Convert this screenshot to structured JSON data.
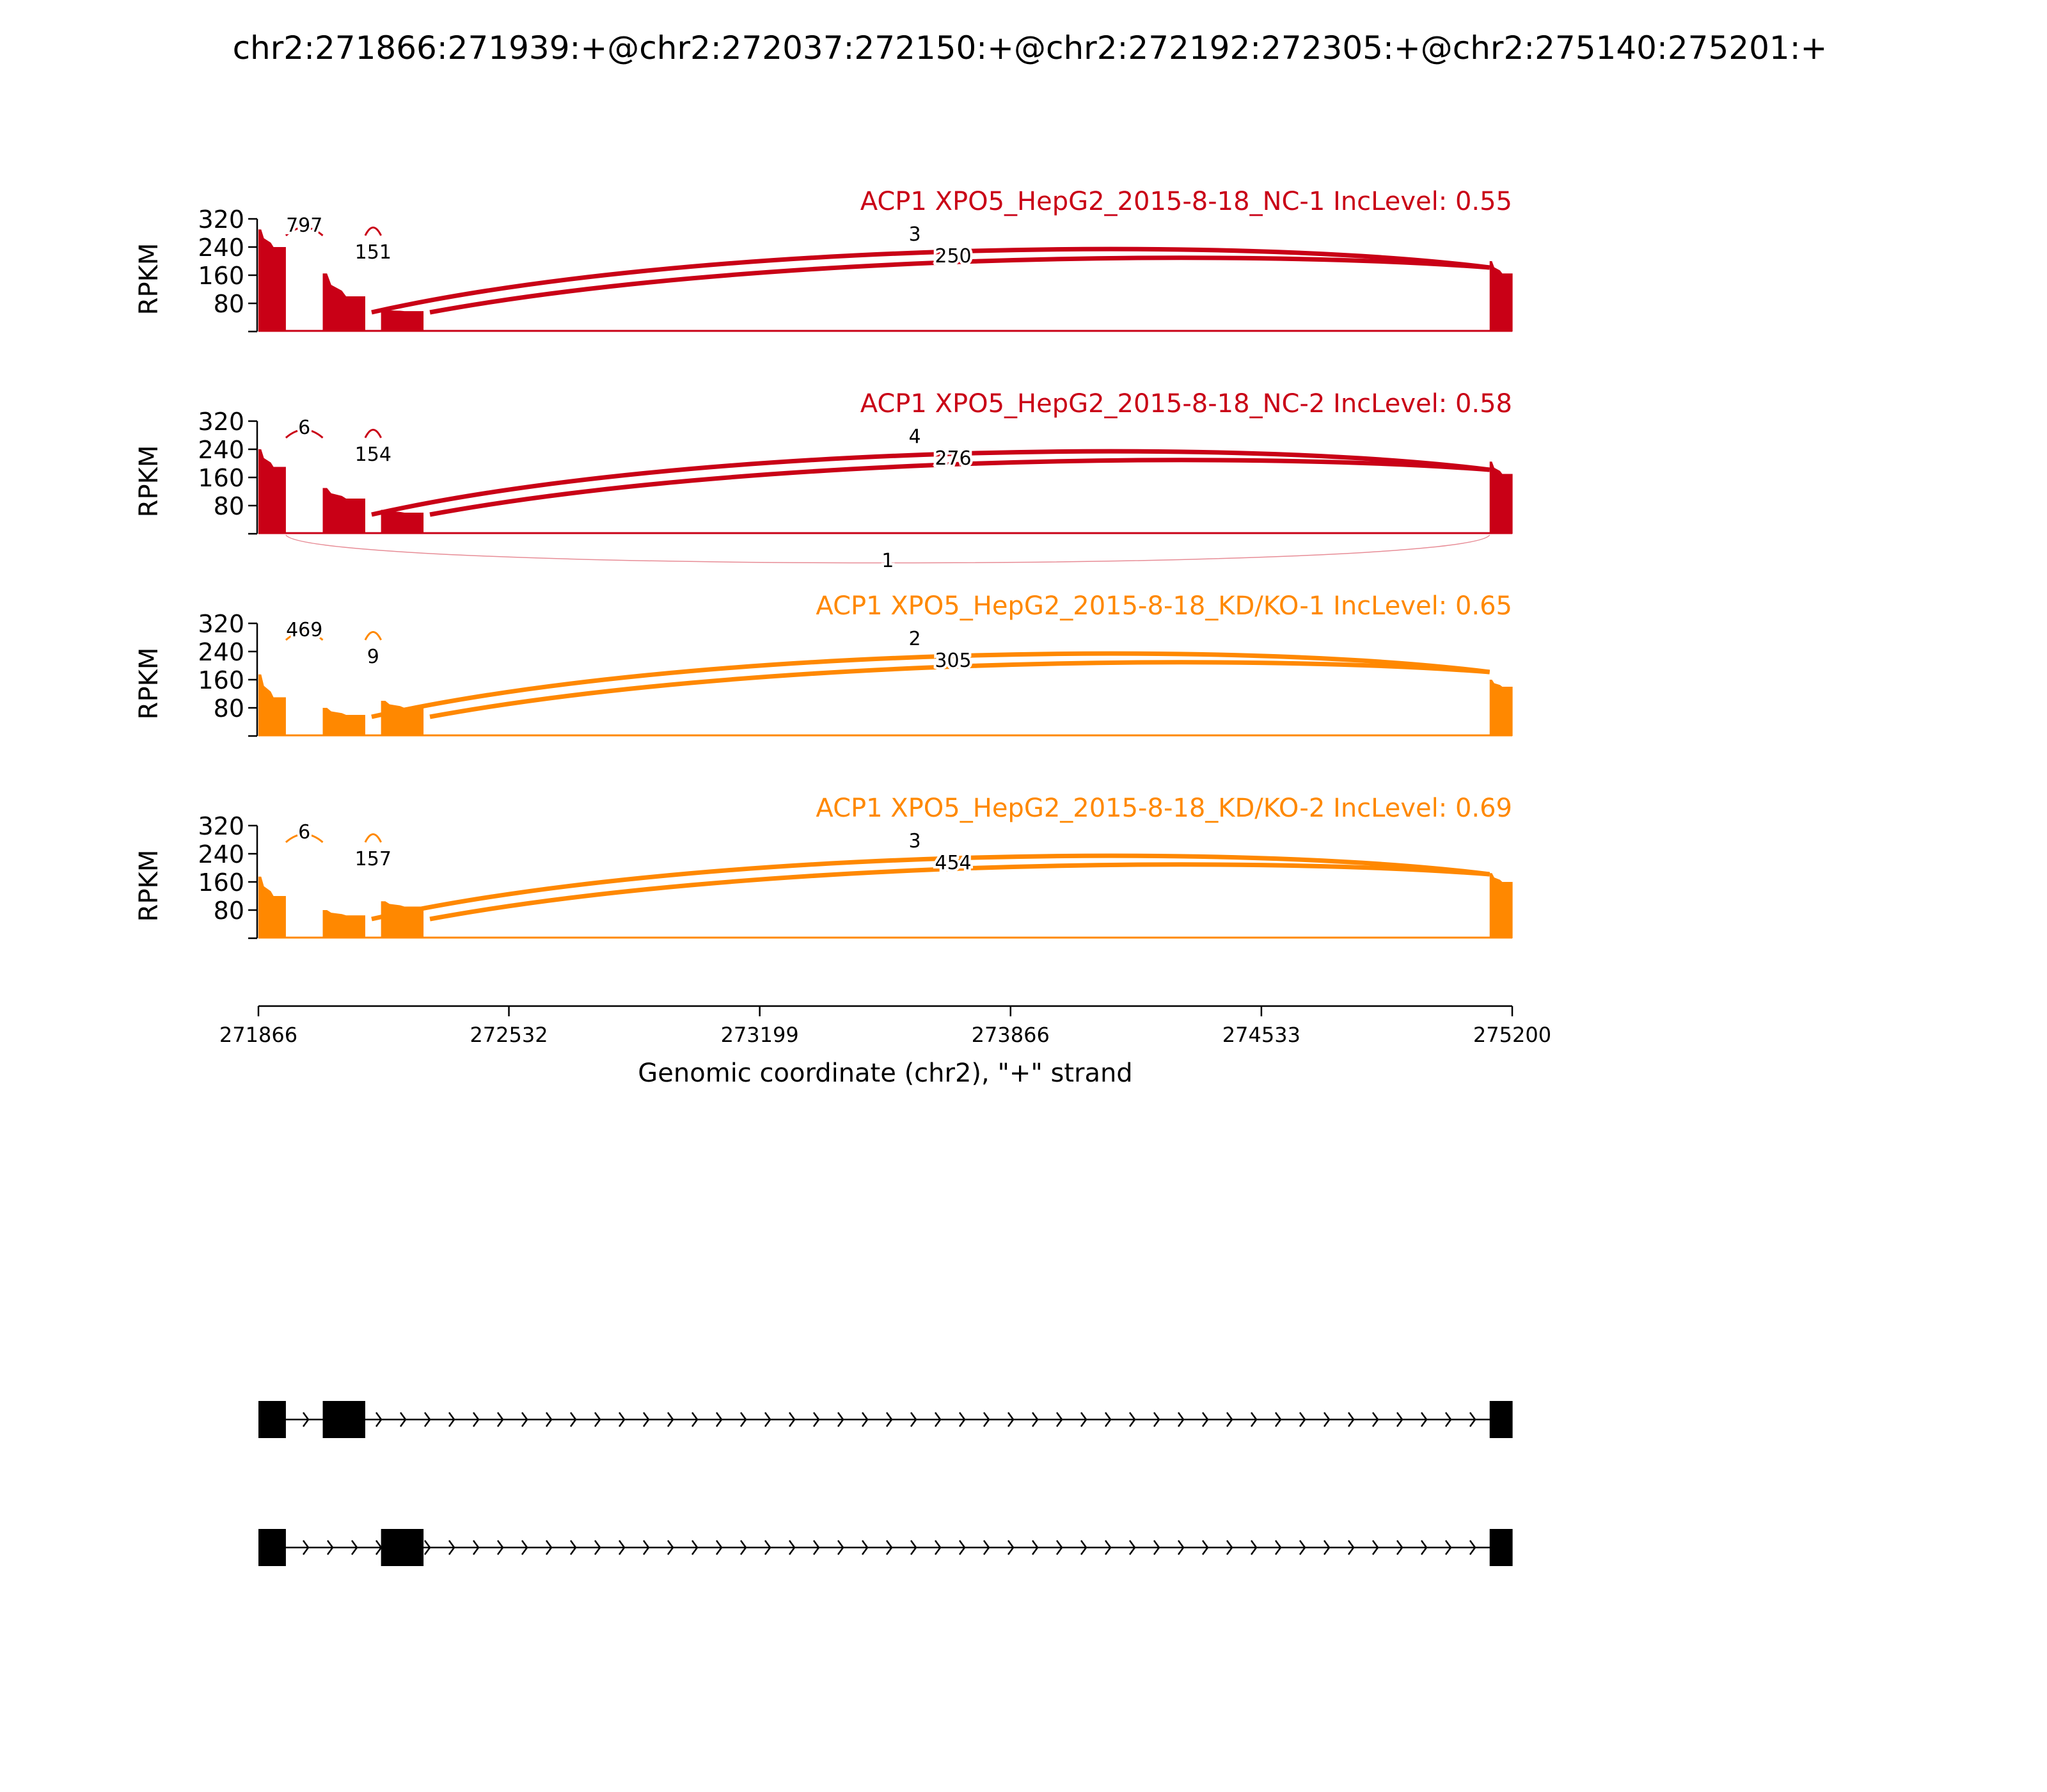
{
  "title": "chr2:271866:271939:+@chr2:272037:272150:+@chr2:272192:272305:+@chr2:275140:275201:+",
  "chart_data": {
    "type": "sashimi",
    "xlabel": "Genomic coordinate (chr2), \"+\" strand",
    "xlim": [
      271866,
      275200
    ],
    "xticks": [
      "271866",
      "272532",
      "273199",
      "273866",
      "274533",
      "275200"
    ],
    "ylabel": "RPKM",
    "yticks": [
      "320",
      "240",
      "160",
      "80"
    ],
    "ylim": [
      0,
      320
    ],
    "exons": [
      [
        271866,
        271939
      ],
      [
        272037,
        272150
      ],
      [
        272192,
        272305
      ],
      [
        275140,
        275201
      ]
    ],
    "panels": [
      {
        "label": "ACP1 XPO5_HepG2_2015-8-18_NC-1 IncLevel: 0.55",
        "color": "#c90016",
        "coverage": [
          {
            "start": 271866,
            "end": 271939,
            "top": 290,
            "base": 240
          },
          {
            "start": 272037,
            "end": 272150,
            "top": 165,
            "base": 100
          },
          {
            "start": 272192,
            "end": 272305,
            "top": 62,
            "base": 58
          },
          {
            "start": 275140,
            "end": 275201,
            "top": 200,
            "base": 165
          }
        ],
        "junctions": [
          {
            "label": "797",
            "from": 271939,
            "to": 272037,
            "side": "above"
          },
          {
            "label": "151",
            "from": 272150,
            "to": 272192,
            "side": "above"
          },
          {
            "label": "3",
            "from": 272150,
            "to": 275140,
            "side": "above"
          },
          {
            "label": "250",
            "from": 272305,
            "to": 275140,
            "side": "above"
          }
        ]
      },
      {
        "label": "ACP1 XPO5_HepG2_2015-8-18_NC-2 IncLevel: 0.58",
        "color": "#c90016",
        "coverage": [
          {
            "start": 271866,
            "end": 271939,
            "top": 240,
            "base": 190
          },
          {
            "start": 272037,
            "end": 272150,
            "top": 130,
            "base": 100
          },
          {
            "start": 272192,
            "end": 272305,
            "top": 68,
            "base": 60
          },
          {
            "start": 275140,
            "end": 275201,
            "top": 205,
            "base": 170
          }
        ],
        "junctions": [
          {
            "label": "6",
            "from": 271939,
            "to": 272037,
            "side": "above"
          },
          {
            "label": "154",
            "from": 272150,
            "to": 272192,
            "side": "above"
          },
          {
            "label": "4",
            "from": 272150,
            "to": 275140,
            "side": "above"
          },
          {
            "label": "276",
            "from": 272305,
            "to": 275140,
            "side": "above"
          },
          {
            "label": "1",
            "from": 271939,
            "to": 275140,
            "side": "below"
          }
        ]
      },
      {
        "label": "ACP1 XPO5_HepG2_2015-8-18_KD/KO-1 IncLevel: 0.65",
        "color": "#ff8800",
        "coverage": [
          {
            "start": 271866,
            "end": 271939,
            "top": 175,
            "base": 110
          },
          {
            "start": 272037,
            "end": 272150,
            "top": 80,
            "base": 60
          },
          {
            "start": 272192,
            "end": 272305,
            "top": 100,
            "base": 80
          },
          {
            "start": 275140,
            "end": 275201,
            "top": 160,
            "base": 140
          }
        ],
        "junctions": [
          {
            "label": "469",
            "from": 271939,
            "to": 272037,
            "side": "above"
          },
          {
            "label": "9",
            "from": 272150,
            "to": 272192,
            "side": "above"
          },
          {
            "label": "2",
            "from": 272150,
            "to": 275140,
            "side": "above"
          },
          {
            "label": "305",
            "from": 272305,
            "to": 275140,
            "side": "above"
          }
        ]
      },
      {
        "label": "ACP1 XPO5_HepG2_2015-8-18_KD/KO-2 IncLevel: 0.69",
        "color": "#ff8800",
        "coverage": [
          {
            "start": 271866,
            "end": 271939,
            "top": 175,
            "base": 120
          },
          {
            "start": 272037,
            "end": 272150,
            "top": 80,
            "base": 65
          },
          {
            "start": 272192,
            "end": 272305,
            "top": 105,
            "base": 90
          },
          {
            "start": 275140,
            "end": 275201,
            "top": 185,
            "base": 160
          }
        ],
        "junctions": [
          {
            "label": "6",
            "from": 271939,
            "to": 272037,
            "side": "above"
          },
          {
            "label": "157",
            "from": 272150,
            "to": 272192,
            "side": "above"
          },
          {
            "label": "3",
            "from": 272150,
            "to": 275140,
            "side": "above"
          },
          {
            "label": "454",
            "from": 272305,
            "to": 275140,
            "side": "above"
          }
        ]
      }
    ],
    "isoforms": [
      {
        "exons": [
          [
            271866,
            271939
          ],
          [
            272037,
            272150
          ],
          [
            275140,
            275201
          ]
        ]
      },
      {
        "exons": [
          [
            271866,
            271939
          ],
          [
            272192,
            272305
          ],
          [
            275140,
            275201
          ]
        ]
      }
    ]
  }
}
